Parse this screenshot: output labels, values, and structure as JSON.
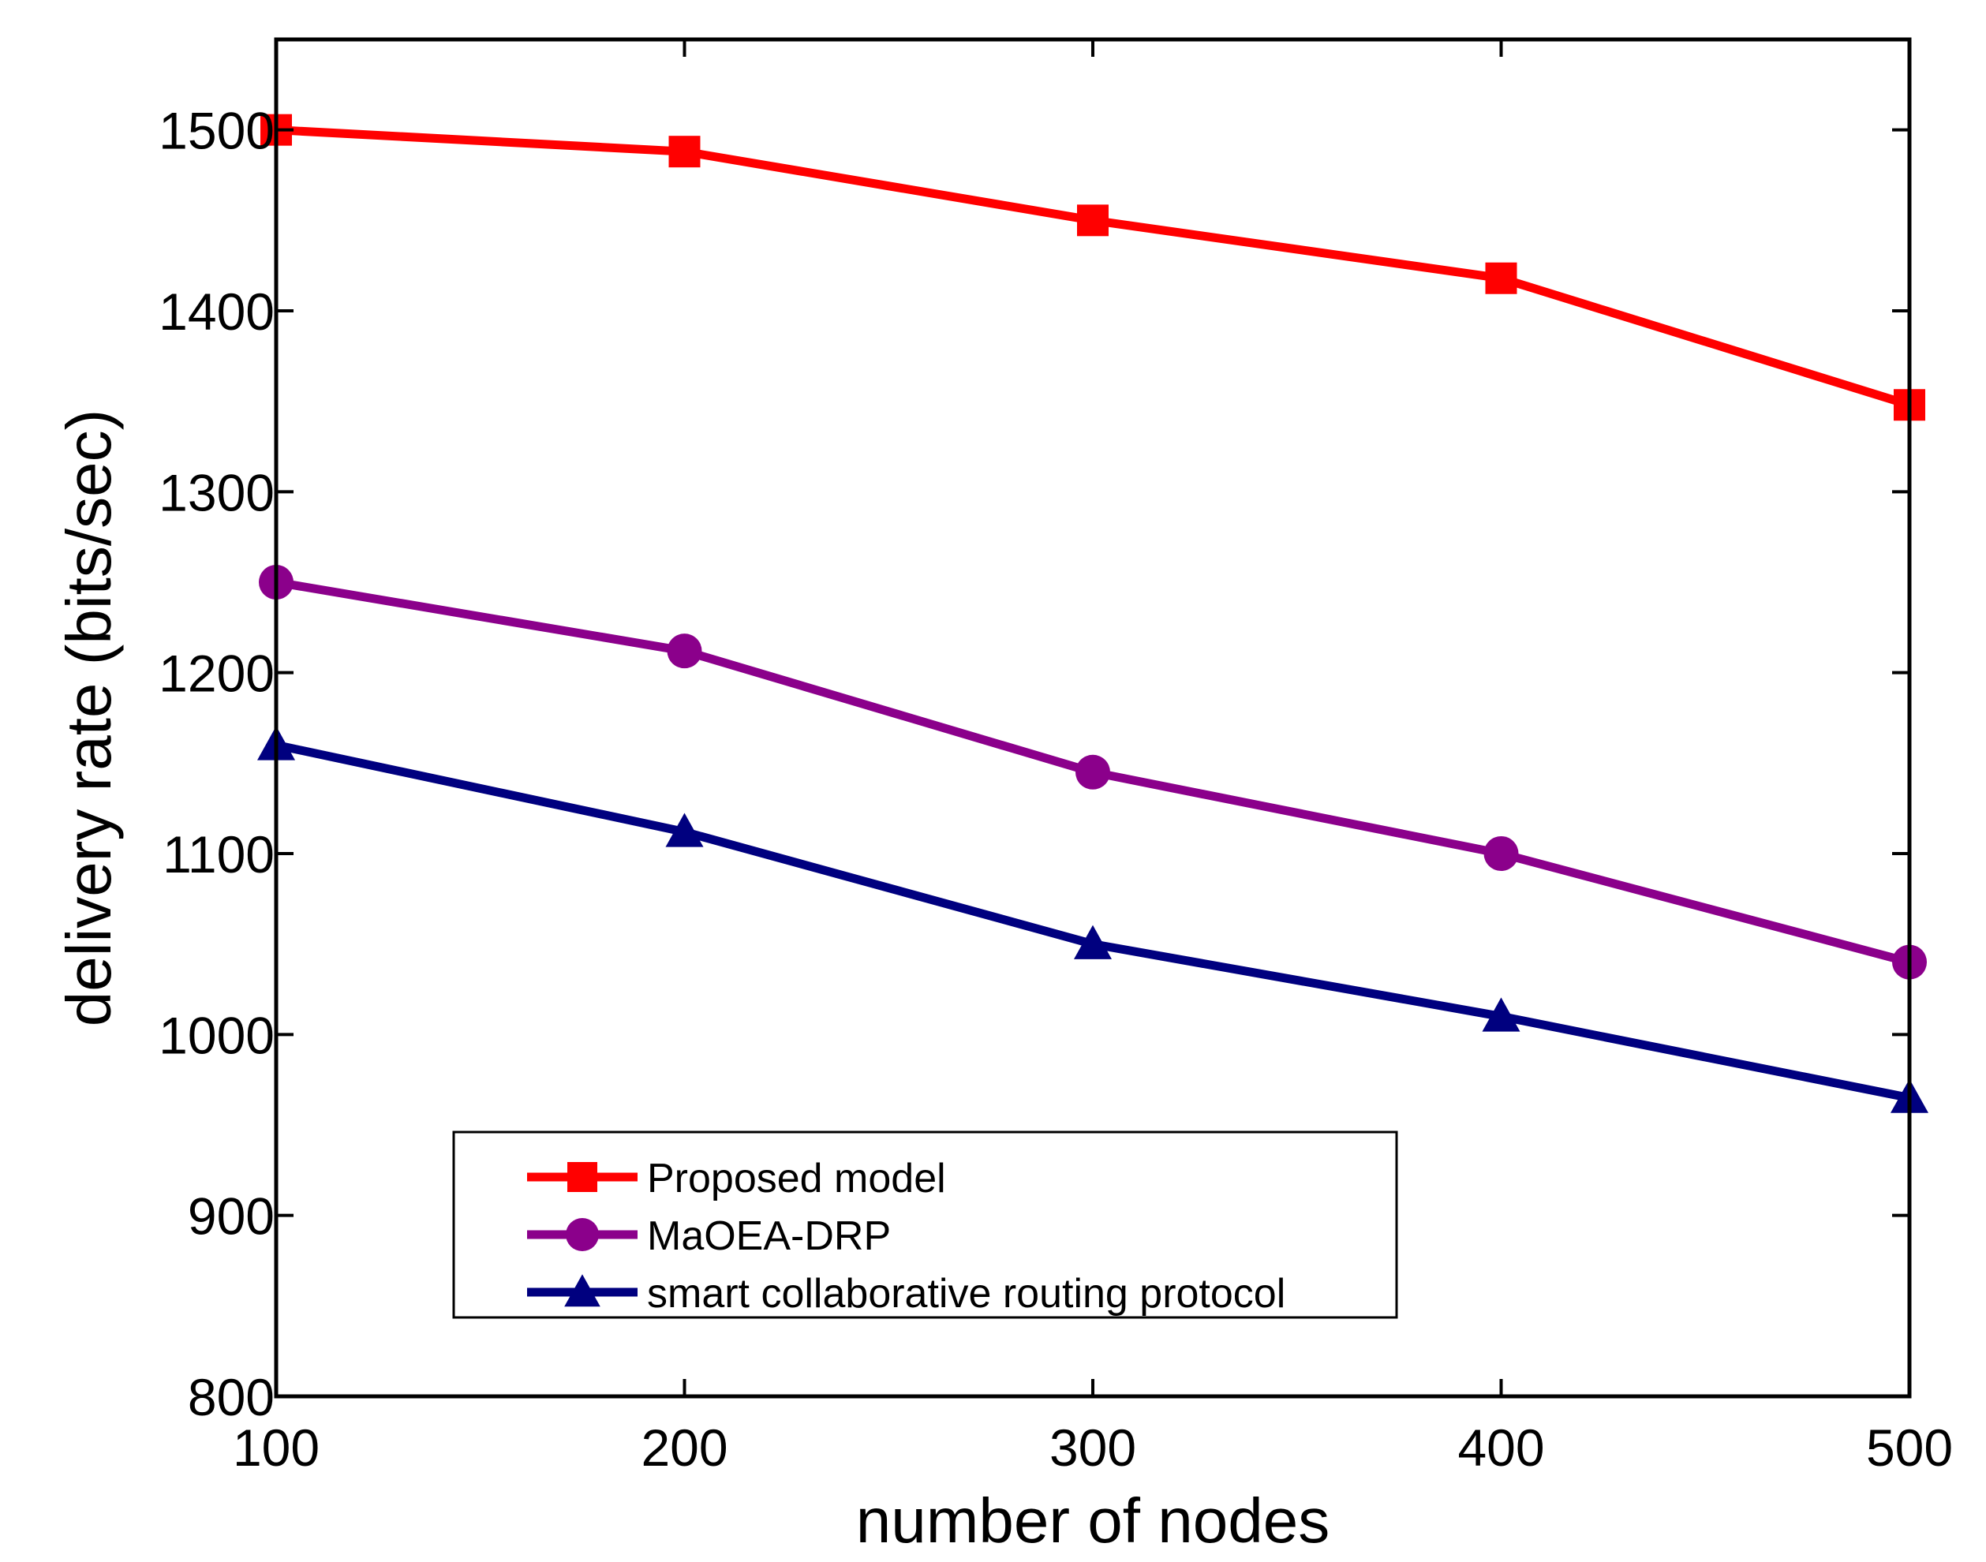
{
  "chart_data": {
    "type": "line",
    "title": "",
    "xlabel": "number of nodes",
    "ylabel": "delivery rate (bits/sec)",
    "x": [
      100,
      200,
      300,
      400,
      500
    ],
    "xlim": [
      100,
      500
    ],
    "ylim": [
      800,
      1550
    ],
    "xticks": [
      "100",
      "200",
      "300",
      "400",
      "500"
    ],
    "yticks": [
      "800",
      "900",
      "1000",
      "1100",
      "1200",
      "1300",
      "1400",
      "1500"
    ],
    "grid": false,
    "legend_position": "lower-center",
    "series": [
      {
        "name": "Proposed model",
        "values": [
          1500,
          1488,
          1450,
          1418,
          1348
        ],
        "color": "#ff0000",
        "marker": "square"
      },
      {
        "name": "MaOEA-DRP",
        "values": [
          1250,
          1212,
          1145,
          1100,
          1040
        ],
        "color": "#8b008b",
        "marker": "circle"
      },
      {
        "name": "smart collaborative routing protocol",
        "values": [
          1160,
          1112,
          1050,
          1010,
          965
        ],
        "color": "#00007f",
        "marker": "triangle"
      }
    ]
  }
}
